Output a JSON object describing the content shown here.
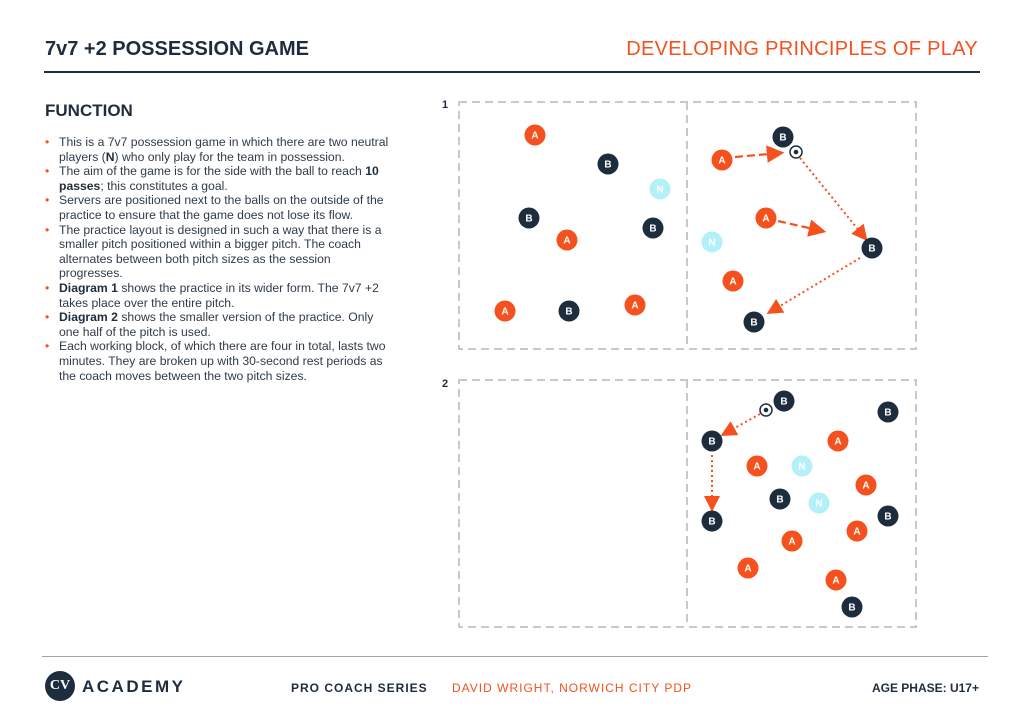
{
  "header": {
    "title": "7v7 +2 POSSESSION GAME",
    "subtitle": "DEVELOPING PRINCIPLES OF PLAY"
  },
  "function": {
    "heading": "FUNCTION",
    "bullets": [
      [
        {
          "t": "This is a 7v7 possession game in which there are two neutral players ("
        },
        {
          "b": "N"
        },
        {
          "t": ") who only play for the team in possession."
        }
      ],
      [
        {
          "t": "The aim of the game is for the side with the ball to reach "
        },
        {
          "b": "10 passes"
        },
        {
          "t": "; this constitutes a goal."
        }
      ],
      [
        {
          "t": "Servers are positioned next to the balls on the outside of the practice to ensure that the game does not lose its flow."
        }
      ],
      [
        {
          "t": "The practice layout is designed in such a way that there is a smaller pitch positioned within a bigger pitch. The coach alternates between both pitch sizes as the session progresses."
        }
      ],
      [
        {
          "b": "Diagram 1"
        },
        {
          "t": " shows the practice in its wider form. The 7v7 +2 takes place over the entire pitch."
        }
      ],
      [
        {
          "b": "Diagram 2"
        },
        {
          "t": " shows the smaller version of the practice. Only one half of the pitch is used."
        }
      ],
      [
        {
          "t": "Each working block, of which there are four in total, lasts two minutes. They are broken up with 30-second rest periods as the coach moves between the two pitch sizes."
        }
      ]
    ]
  },
  "diagrams": [
    {
      "label": "1",
      "players": [
        "A",
        "B",
        "N",
        "B",
        "A",
        "B",
        "A",
        "B",
        "A",
        "B",
        "A",
        "A",
        "N",
        "B",
        "A",
        "B"
      ]
    },
    {
      "label": "2",
      "players": [
        "B",
        "B",
        "B",
        "A",
        "A",
        "N",
        "A",
        "B",
        "N",
        "B",
        "B",
        "A",
        "A",
        "A",
        "A",
        "B"
      ]
    }
  ],
  "colors": {
    "team_a": "#f4511e",
    "team_b": "#1e2d3d",
    "neutral": "#b3f0f7",
    "accent": "#f4511e"
  },
  "footer": {
    "brand": "ACADEMY",
    "logo": "CV",
    "series": "PRO COACH SERIES",
    "coach": "DAVID WRIGHT, NORWICH CITY PDP",
    "age_phase": "AGE PHASE: U17+"
  }
}
